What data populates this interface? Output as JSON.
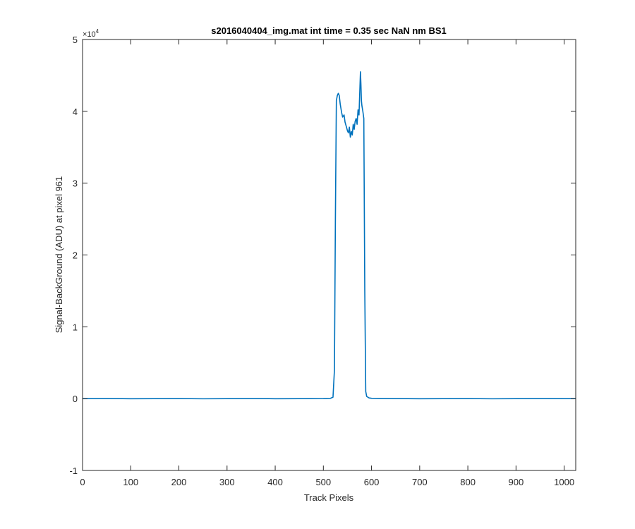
{
  "chart_data": {
    "type": "line",
    "title": "s2016040404_img.mat int time = 0.35 sec  NaN nm BS1",
    "xlabel": "Track Pixels",
    "ylabel": "Signal-BackGround (ADU) at pixel 961",
    "y_exponent_label": "×10",
    "y_exponent_power": "4",
    "xlim": [
      0,
      1024
    ],
    "ylim": [
      -1,
      5
    ],
    "y_scale_factor": 10000,
    "x_ticks": [
      0,
      100,
      200,
      300,
      400,
      500,
      600,
      700,
      800,
      900,
      1000
    ],
    "x_tick_labels": [
      "0",
      "100",
      "200",
      "300",
      "400",
      "500",
      "600",
      "700",
      "800",
      "900",
      "1000"
    ],
    "y_ticks": [
      -1,
      0,
      1,
      2,
      3,
      4,
      5
    ],
    "y_tick_labels": [
      "-1",
      "0",
      "1",
      "2",
      "3",
      "4",
      "5"
    ],
    "grid": false,
    "line_color": "#0072BD",
    "series": [
      {
        "x": [
          0,
          50,
          100,
          150,
          200,
          250,
          300,
          350,
          400,
          450,
          500,
          515,
          520,
          523,
          525,
          527,
          529,
          531,
          533,
          535,
          538,
          540,
          543,
          545,
          548,
          550,
          552,
          554,
          556,
          558,
          560,
          562,
          564,
          566,
          568,
          570,
          572,
          574,
          576,
          577,
          578,
          579,
          580,
          582,
          584,
          586,
          588,
          590,
          595,
          600,
          650,
          700,
          750,
          800,
          850,
          900,
          950,
          1000,
          1024
        ],
        "y": [
          0.0,
          0.002,
          -0.001,
          0.0,
          0.001,
          -0.002,
          0.0,
          0.001,
          -0.001,
          0.0,
          0.002,
          0.005,
          0.02,
          0.4,
          2.5,
          4.15,
          4.22,
          4.25,
          4.22,
          4.1,
          3.98,
          3.92,
          3.95,
          3.85,
          3.78,
          3.73,
          3.7,
          3.78,
          3.64,
          3.72,
          3.67,
          3.82,
          3.75,
          3.86,
          3.9,
          3.82,
          4.02,
          3.95,
          4.35,
          4.55,
          4.38,
          4.15,
          4.08,
          4.0,
          3.9,
          1.5,
          0.1,
          0.03,
          0.01,
          0.005,
          0.001,
          -0.001,
          0.0,
          0.001,
          -0.002,
          0.0,
          0.001,
          0.0,
          0.0
        ]
      }
    ]
  }
}
